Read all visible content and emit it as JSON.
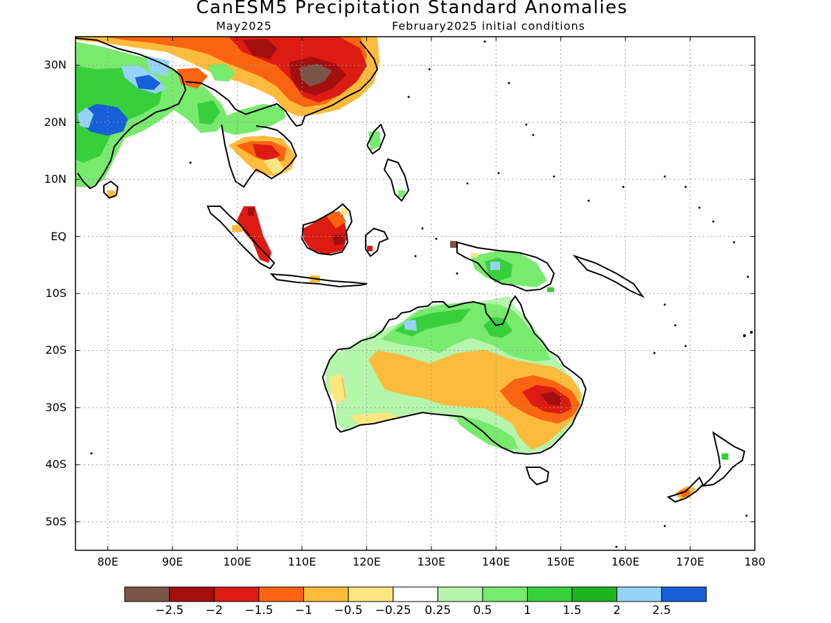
{
  "title": "CanESM5 Precipitation Standard Anomalies",
  "subtitle_left": "May2025",
  "subtitle_right": "February2025 initial conditions",
  "map": {
    "lon_range": [
      75,
      180
    ],
    "lat_range": [
      -55,
      35
    ],
    "grid": "dotted",
    "lat_labels": [
      "30N",
      "20N",
      "10N",
      "EQ",
      "10S",
      "20S",
      "30S",
      "40S",
      "50S"
    ],
    "lat_values": [
      30,
      20,
      10,
      0,
      -10,
      -20,
      -30,
      -40,
      -50
    ],
    "lon_labels": [
      "80E",
      "90E",
      "100E",
      "110E",
      "120E",
      "130E",
      "140E",
      "150E",
      "160E",
      "170E",
      "180"
    ],
    "lon_values": [
      80,
      90,
      100,
      110,
      120,
      130,
      140,
      150,
      160,
      170,
      180
    ]
  },
  "colorbar": {
    "colors": [
      "#7a5548",
      "#a30e0e",
      "#dc1b12",
      "#fa6410",
      "#fcbb3c",
      "#fde680",
      "#ffffff",
      "#b5f5ac",
      "#78ea6e",
      "#37d03c",
      "#1db41f",
      "#96d3fa",
      "#1860d8"
    ],
    "labels": [
      "-2.5",
      "-2",
      "-1.5",
      "-1",
      "-0.5",
      "-0.25",
      "0.25",
      "0.5",
      "1",
      "1.5",
      "2",
      "2.5"
    ]
  }
}
